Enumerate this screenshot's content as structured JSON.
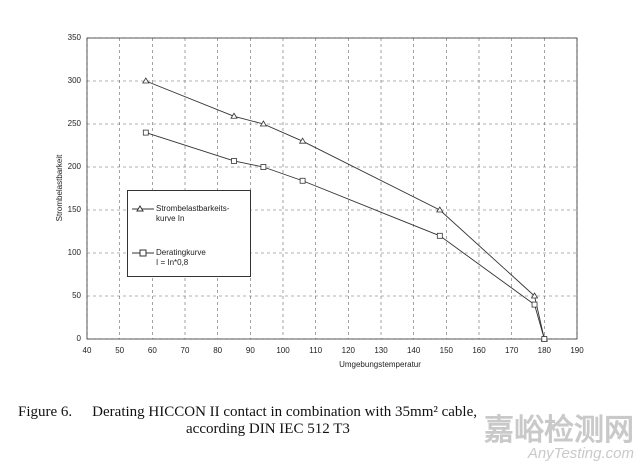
{
  "chart_data": {
    "type": "line",
    "x_label": "Umgebungstemperatur",
    "y_label": "Strombelastbarkeit",
    "xlim": [
      40,
      190
    ],
    "xticks": [
      40,
      50,
      60,
      70,
      80,
      90,
      100,
      110,
      120,
      130,
      140,
      150,
      160,
      170,
      180,
      190
    ],
    "ylim": [
      0,
      350
    ],
    "yticks": [
      0,
      50,
      100,
      150,
      200,
      250,
      300,
      350
    ],
    "grid": true,
    "series": [
      {
        "name": "Strombelastbarkeits-\nkurve In",
        "color": "#333333",
        "marker": "triangle",
        "x": [
          58,
          85,
          94,
          106,
          148,
          177,
          180
        ],
        "values": [
          300,
          259,
          250,
          230,
          150,
          50,
          0
        ]
      },
      {
        "name": "Deratingkurve\nI = In*0,8",
        "color": "#333333",
        "marker": "square",
        "x": [
          58,
          85,
          94,
          106,
          148,
          177,
          180
        ],
        "values": [
          240,
          207,
          200,
          184,
          120,
          40,
          0
        ]
      }
    ]
  },
  "caption": [
    "Figure 6.",
    "Derating HICCON II contact in combination with 35mm² cable,",
    "according DIN IEC 512 T3"
  ],
  "watermark": [
    "嘉峪检测网",
    "AnyTesting.com"
  ]
}
